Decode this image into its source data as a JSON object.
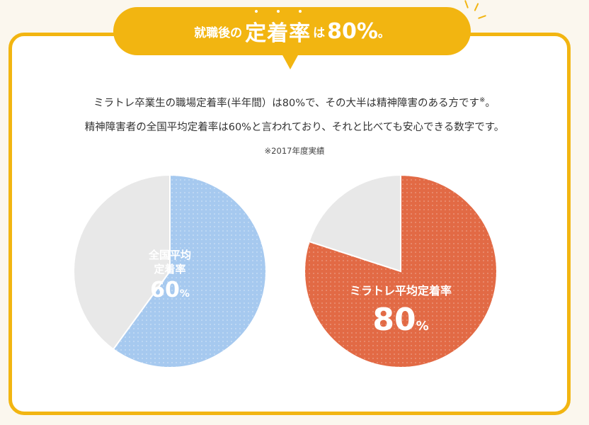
{
  "banner": {
    "prefix": "就職後の",
    "highlight": "定着率",
    "particle": "は",
    "value": "80%",
    "suffix": "。"
  },
  "description": {
    "line1": "ミラトレ卒業生の職場定着率(半年間）は80%で、その大半は精神障害のある方です",
    "line1_mark": "※",
    "line1_end": "。",
    "line2": "精神障害者の全国平均定着率は60%と言われており、それと比べても安心できる数字です。"
  },
  "note": "※2017年度実績",
  "chart_data": [
    {
      "type": "pie",
      "values": [
        60,
        40
      ],
      "colors": [
        "#a6c9ef",
        "#e8e8e8"
      ],
      "label_lines": [
        "全国平均",
        "定着率"
      ],
      "value_number": "60",
      "value_unit": "%"
    },
    {
      "type": "pie",
      "values": [
        80,
        20
      ],
      "colors": [
        "#e26a45",
        "#e8e8e8"
      ],
      "label_lines": [
        "ミラトレ平均定着率"
      ],
      "value_number": "80",
      "value_unit": "%"
    }
  ]
}
